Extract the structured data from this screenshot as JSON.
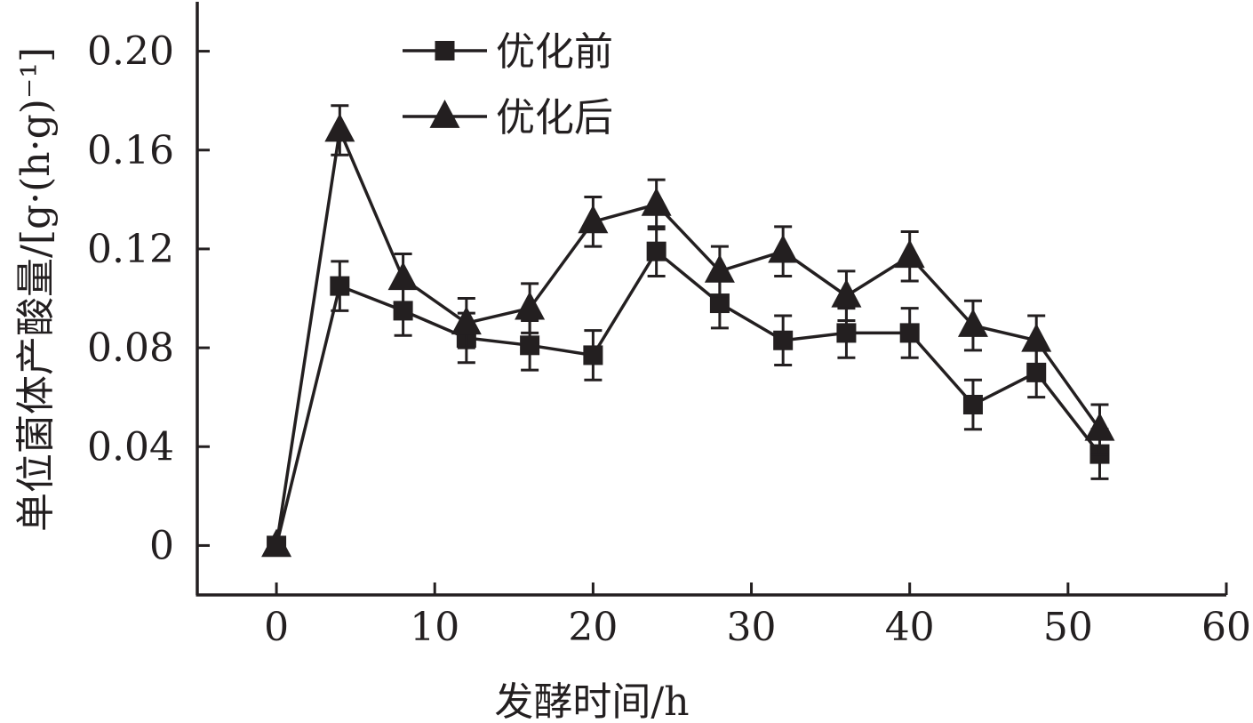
{
  "chart_data": {
    "type": "line",
    "xlabel": "发酵时间/h",
    "ylabel": "单位菌体产酸量/[g·(h·g)⁻¹]",
    "xlim": [
      -5,
      60
    ],
    "ylim": [
      -0.02,
      0.22
    ],
    "x_ticks": [
      0,
      10,
      20,
      30,
      40,
      50,
      60
    ],
    "x_tick_labels": [
      "0",
      "10",
      "20",
      "30",
      "40",
      "50",
      "60"
    ],
    "y_ticks": [
      0,
      0.04,
      0.08,
      0.12,
      0.16,
      0.2
    ],
    "y_tick_labels": [
      "0",
      "0.04",
      "0.08",
      "0.12",
      "0.16",
      "0.20"
    ],
    "legend_position": "top-left",
    "grid": false,
    "series": [
      {
        "name": "优化前",
        "marker": "square",
        "color": "#231f20",
        "x": [
          0,
          4,
          8,
          12,
          16,
          20,
          24,
          28,
          32,
          36,
          40,
          44,
          48,
          52
        ],
        "y": [
          0,
          0.105,
          0.095,
          0.084,
          0.081,
          0.077,
          0.119,
          0.098,
          0.083,
          0.086,
          0.086,
          0.057,
          0.07,
          0.037
        ],
        "error": [
          0,
          0.01,
          0.01,
          0.01,
          0.01,
          0.01,
          0.01,
          0.01,
          0.01,
          0.01,
          0.01,
          0.01,
          0.01,
          0.01
        ]
      },
      {
        "name": "优化后",
        "marker": "triangle",
        "color": "#231f20",
        "x": [
          0,
          4,
          8,
          12,
          16,
          20,
          24,
          28,
          32,
          36,
          40,
          44,
          48,
          52
        ],
        "y": [
          0,
          0.168,
          0.108,
          0.09,
          0.096,
          0.131,
          0.138,
          0.111,
          0.119,
          0.101,
          0.117,
          0.089,
          0.083,
          0.047
        ],
        "error": [
          0,
          0.01,
          0.01,
          0.01,
          0.01,
          0.01,
          0.01,
          0.01,
          0.01,
          0.01,
          0.01,
          0.01,
          0.01,
          0.01
        ]
      }
    ]
  }
}
